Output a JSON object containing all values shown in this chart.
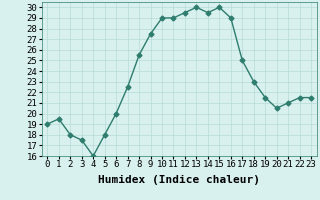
{
  "xlabel": "Humidex (Indice chaleur)",
  "x": [
    0,
    1,
    2,
    3,
    4,
    5,
    6,
    7,
    8,
    9,
    10,
    11,
    12,
    13,
    14,
    15,
    16,
    17,
    18,
    19,
    20,
    21,
    22,
    23
  ],
  "y": [
    19,
    19.5,
    18,
    17.5,
    16,
    18,
    20,
    22.5,
    25.5,
    27.5,
    29,
    29,
    29.5,
    30,
    29.5,
    30,
    29,
    25,
    23,
    21.5,
    20.5,
    21,
    21.5,
    21.5
  ],
  "ylim": [
    16,
    30.5
  ],
  "yticks": [
    16,
    17,
    18,
    19,
    20,
    21,
    22,
    23,
    24,
    25,
    26,
    27,
    28,
    29,
    30
  ],
  "line_color": "#2e7d6e",
  "marker": "D",
  "marker_size": 2.5,
  "bg_color": "#d8f0ee",
  "grid_color": "#b8dbd8",
  "axis_fontsize": 7,
  "tick_fontsize": 6.5,
  "xlabel_fontsize": 8
}
